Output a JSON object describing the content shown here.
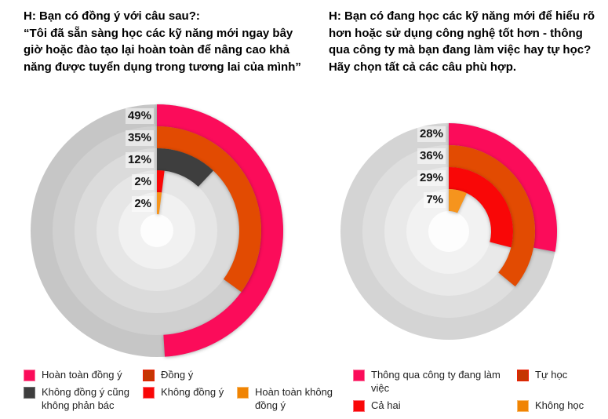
{
  "chart_data": [
    {
      "type": "radial-bar",
      "question": "H: Bạn có đồng ý với câu sau?:",
      "statement": "“Tôi đã sẵn sàng học các kỹ năng mới ngay bây giờ hoặc đào tạo lại hoàn toàn để nâng cao khả năng được tuyển dụng trong tương lai của mình”",
      "unit": "%",
      "categories": [
        "Hoàn toàn đồng ý",
        "Đồng ý",
        "Không đồng ý cũng không phản bác",
        "Không đồng ý",
        "Hoàn toàn không đồng ý"
      ],
      "values": [
        49,
        35,
        12,
        2,
        2
      ],
      "rings": [
        {
          "label": "Hoàn toàn đồng ý",
          "value": 49,
          "pct_label": "49%",
          "color": "#FB0C5A"
        },
        {
          "label": "Đồng ý",
          "value": 35,
          "pct_label": "35%",
          "color": "#E24B02"
        },
        {
          "label": "Không đồng ý cũng không phản bác",
          "value": 12,
          "pct_label": "12%",
          "color": "#3E3E3E"
        },
        {
          "label": "Không đồng ý",
          "value": 2,
          "pct_label": "2%",
          "color": "#F90707"
        },
        {
          "label": "Hoàn toàn không đồng ý",
          "value": 2,
          "pct_label": "2%",
          "color": "#F6941D"
        }
      ],
      "track_colors": [
        "#C6C6C6",
        "#D0D0D0",
        "#DBDBDB",
        "#E6E6E6",
        "#F1F1F1"
      ],
      "hole_color": "#FDFDFD",
      "legend": [
        {
          "label": "Hoàn toàn đồng ý",
          "fill": "#FB0C5A",
          "border": "#FD6E9A"
        },
        {
          "label": "Đồng ý",
          "fill": "#C53602",
          "border": "#EF1D05"
        },
        {
          "label": "Không đồng ý cũng không phản bác",
          "fill": "#3E3E3E",
          "border": "#707070"
        },
        {
          "label": "Không đồng ý",
          "fill": "#F90707",
          "border": "#FC6B74"
        },
        {
          "label": "Hoàn toàn không đồng ý",
          "fill": "#F08403",
          "border": "#F8BA6B"
        }
      ]
    },
    {
      "type": "radial-bar",
      "question": "H: Bạn có đang học các kỹ năng mới để hiểu rõ hơn hoặc sử dụng công nghệ tốt hơn - thông qua công ty mà bạn đang làm việc hay tự học? Hãy chọn tất cả các câu phù hợp.",
      "statement": "",
      "unit": "%",
      "categories": [
        "Thông qua công ty đang làm việc",
        "Tự học",
        "Cả hai",
        "Không học"
      ],
      "values": [
        28,
        36,
        29,
        7
      ],
      "rings": [
        {
          "label": "Thông qua công ty đang làm việc",
          "value": 28,
          "pct_label": "28%",
          "color": "#FB0C5A"
        },
        {
          "label": "Tự học",
          "value": 36,
          "pct_label": "36%",
          "color": "#E24B02"
        },
        {
          "label": "Cả hai",
          "value": 29,
          "pct_label": "29%",
          "color": "#F90707"
        },
        {
          "label": "Không học",
          "value": 7,
          "pct_label": "7%",
          "color": "#F6941D"
        }
      ],
      "track_colors": [
        "#D4D4D4",
        "#DEDEDE",
        "#E9E9E9",
        "#F2F2F2"
      ],
      "hole_color": "#FDFDFD",
      "legend": [
        {
          "label": "Thông qua công ty đang làm việc",
          "fill": "#FB0C5A",
          "border": "#FD6E9A"
        },
        {
          "label": "Tự học",
          "fill": "#C53602",
          "border": "#EF1D05"
        },
        {
          "label": "Cả hai",
          "fill": "#F90707",
          "border": "#FC6B74"
        },
        {
          "label": "Không học",
          "fill": "#F08403",
          "border": "#F8BA6B"
        }
      ]
    }
  ]
}
